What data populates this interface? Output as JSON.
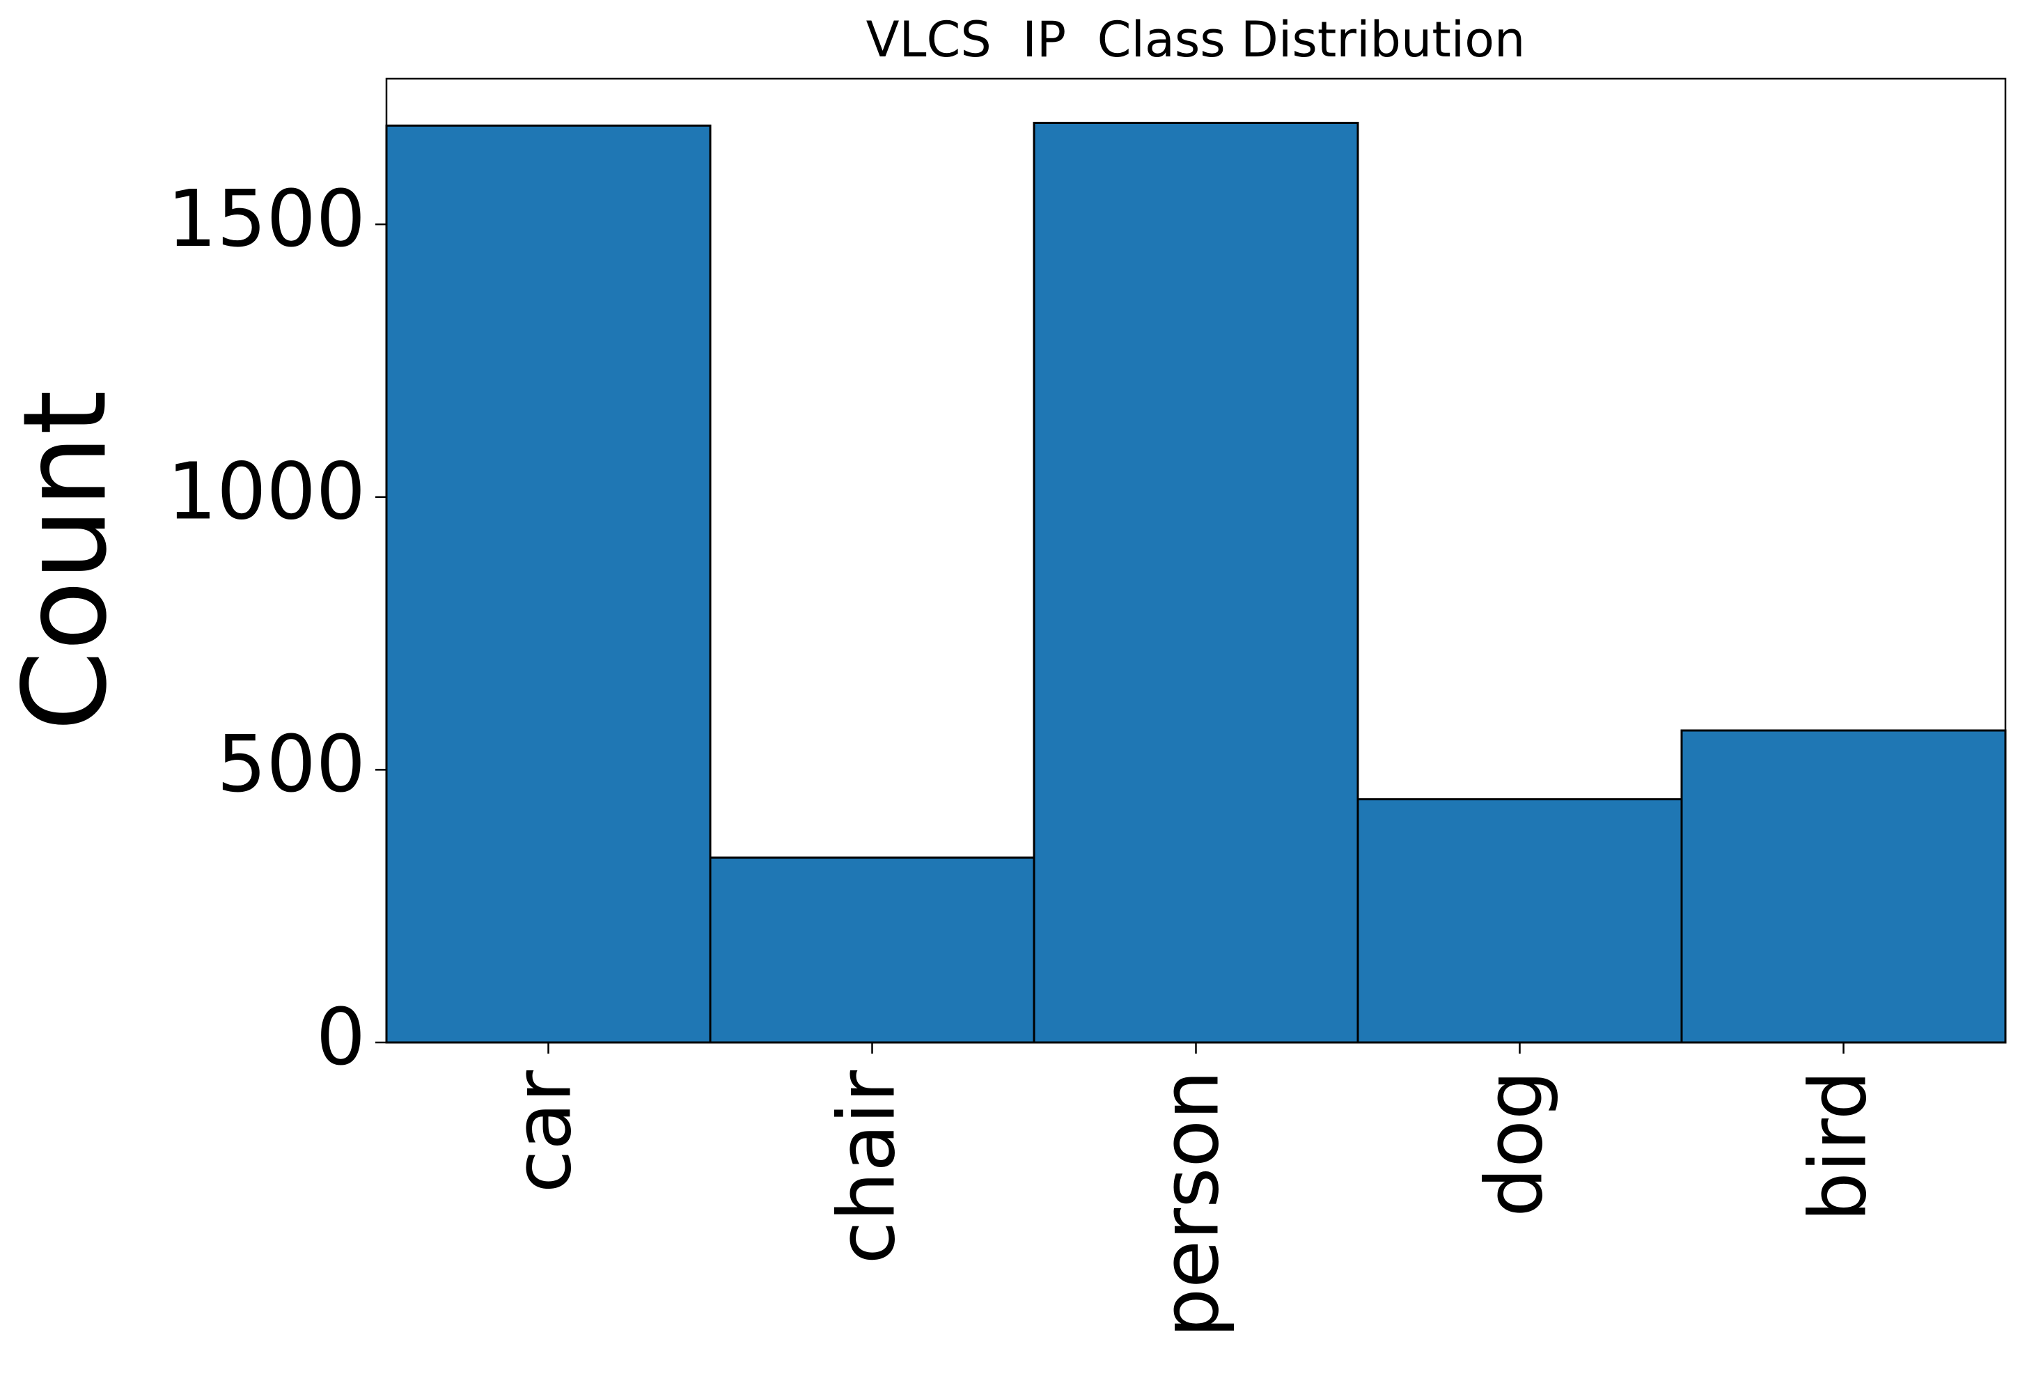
{
  "chart_data": {
    "type": "bar",
    "title": "VLCS  IP  Class Distribution",
    "y_label": "Count",
    "categories": [
      "car",
      "chair",
      "person",
      "dog",
      "bird"
    ],
    "values": [
      1681,
      339,
      1686,
      446,
      572
    ],
    "color": "#1f77b4",
    "ylim": [
      0,
      1767
    ],
    "yticks": [
      0,
      500,
      1000,
      1500
    ],
    "grid": false
  }
}
